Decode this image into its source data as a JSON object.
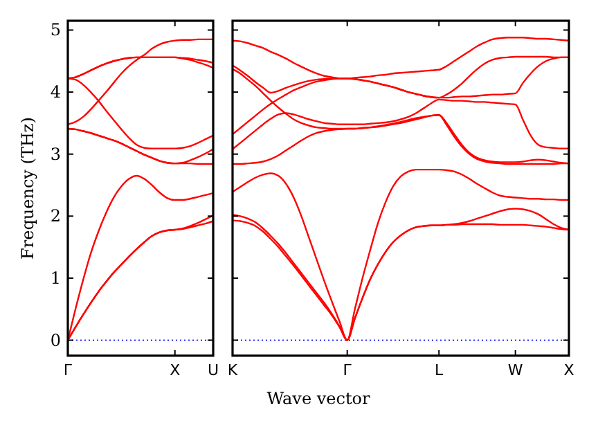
{
  "chart_data": [
    {
      "type": "line",
      "ylabel": "Frequency (THz)",
      "ylim": [
        -0.25,
        5.15
      ],
      "categories": [
        "Γ",
        null,
        null,
        null,
        null,
        null,
        null,
        null,
        null,
        null,
        null,
        null,
        null,
        null,
        "X",
        null,
        null,
        null,
        null,
        "U"
      ],
      "yticks": [
        0,
        1,
        2,
        3,
        4,
        5
      ],
      "ref_lines": [
        {
          "axis": "y",
          "value": 0,
          "color": "#0000ff",
          "line_style": "dotted"
        }
      ],
      "series": [
        {
          "color": "#ff0000",
          "values": [
            0,
            0.21,
            0.41,
            0.6,
            0.78,
            0.94,
            1.09,
            1.22,
            1.35,
            1.47,
            1.58,
            1.68,
            1.74,
            1.77,
            1.78,
            1.8,
            1.84,
            1.89,
            1.95,
            2.01
          ]
        },
        {
          "color": "#ff0000",
          "values": [
            0,
            0.21,
            0.41,
            0.6,
            0.78,
            0.94,
            1.09,
            1.22,
            1.35,
            1.47,
            1.58,
            1.68,
            1.74,
            1.77,
            1.78,
            1.79,
            1.82,
            1.85,
            1.88,
            1.92
          ]
        },
        {
          "color": "#ff0000",
          "values": [
            0,
            0.5,
            0.97,
            1.4,
            1.75,
            2.05,
            2.3,
            2.48,
            2.6,
            2.65,
            2.6,
            2.5,
            2.38,
            2.29,
            2.26,
            2.26,
            2.28,
            2.31,
            2.34,
            2.37
          ]
        },
        {
          "color": "#ff0000",
          "values": [
            3.41,
            3.4,
            3.37,
            3.34,
            3.3,
            3.26,
            3.22,
            3.17,
            3.11,
            3.05,
            2.99,
            2.94,
            2.89,
            2.86,
            2.85,
            2.85,
            2.85,
            2.84,
            2.84,
            2.84
          ]
        },
        {
          "color": "#ff0000",
          "values": [
            3.41,
            3.4,
            3.37,
            3.34,
            3.3,
            3.26,
            3.22,
            3.17,
            3.11,
            3.05,
            2.99,
            2.94,
            2.89,
            2.86,
            2.85,
            2.86,
            2.9,
            2.95,
            3.01,
            3.08
          ]
        },
        {
          "color": "#ff0000",
          "values": [
            3.48,
            3.52,
            3.6,
            3.72,
            3.86,
            4.0,
            4.15,
            4.3,
            4.42,
            4.52,
            4.6,
            4.7,
            4.77,
            4.81,
            4.83,
            4.84,
            4.84,
            4.85,
            4.85,
            4.85
          ]
        },
        {
          "color": "#ff0000",
          "values": [
            4.22,
            4.2,
            4.12,
            4.0,
            3.86,
            3.7,
            3.55,
            3.4,
            3.26,
            3.15,
            3.1,
            3.09,
            3.09,
            3.09,
            3.09,
            3.1,
            3.13,
            3.18,
            3.24,
            3.3
          ]
        },
        {
          "color": "#ff0000",
          "values": [
            4.22,
            4.24,
            4.29,
            4.35,
            4.41,
            4.46,
            4.5,
            4.53,
            4.55,
            4.56,
            4.56,
            4.56,
            4.56,
            4.56,
            4.56,
            4.55,
            4.54,
            4.52,
            4.5,
            4.47
          ]
        },
        {
          "color": "#ff0000",
          "values": [
            4.22,
            4.24,
            4.29,
            4.35,
            4.41,
            4.46,
            4.5,
            4.53,
            4.55,
            4.56,
            4.56,
            4.56,
            4.56,
            4.56,
            4.56,
            4.54,
            4.52,
            4.48,
            4.44,
            4.39
          ]
        }
      ]
    },
    {
      "type": "line",
      "xlabel": "Wave vector",
      "tick_labels": "x",
      "ylim": [
        -0.25,
        5.15
      ],
      "categories": [
        "K",
        null,
        null,
        null,
        null,
        null,
        null,
        null,
        null,
        null,
        null,
        null,
        null,
        null,
        null,
        "Γ",
        null,
        null,
        null,
        null,
        null,
        null,
        null,
        null,
        null,
        null,
        null,
        "L",
        null,
        null,
        null,
        null,
        null,
        null,
        null,
        null,
        null,
        "W",
        null,
        null,
        null,
        null,
        null,
        null,
        "X"
      ],
      "yticks": [
        0,
        1,
        2,
        3,
        4,
        5
      ],
      "ref_lines": [
        {
          "axis": "y",
          "value": 0,
          "color": "#0000ff",
          "line_style": "dotted"
        }
      ],
      "series": [
        {
          "color": "#ff0000",
          "values": [
            4.83,
            4.82,
            4.79,
            4.75,
            4.71,
            4.65,
            4.6,
            4.54,
            4.47,
            4.41,
            4.35,
            4.3,
            4.26,
            4.24,
            4.22,
            4.22,
            4.23,
            4.24,
            4.25,
            4.27,
            4.28,
            4.3,
            4.31,
            4.32,
            4.33,
            4.34,
            4.35,
            4.36,
            4.42,
            4.5,
            4.58,
            4.66,
            4.74,
            4.8,
            4.85,
            4.87,
            4.88,
            4.88,
            4.88,
            4.87,
            4.86,
            4.86,
            4.85,
            4.84,
            4.83
          ]
        },
        {
          "color": "#ff0000",
          "values": [
            4.43,
            4.35,
            4.26,
            4.16,
            4.07,
            3.99,
            4.02,
            4.07,
            4.11,
            4.15,
            4.18,
            4.2,
            4.21,
            4.22,
            4.22,
            4.22,
            4.21,
            4.19,
            4.17,
            4.14,
            4.11,
            4.08,
            4.04,
            4.0,
            3.97,
            3.94,
            3.92,
            3.91,
            3.96,
            4.04,
            4.14,
            4.26,
            4.37,
            4.46,
            4.52,
            4.55,
            4.56,
            4.57,
            4.57,
            4.57,
            4.57,
            4.57,
            4.56,
            4.56,
            4.56
          ]
        },
        {
          "color": "#ff0000",
          "values": [
            3.32,
            3.42,
            3.52,
            3.62,
            3.72,
            3.81,
            3.89,
            3.96,
            4.03,
            4.08,
            4.13,
            4.17,
            4.19,
            4.21,
            4.22,
            4.22,
            4.21,
            4.19,
            4.17,
            4.14,
            4.11,
            4.08,
            4.04,
            4.0,
            3.97,
            3.94,
            3.92,
            3.91,
            3.91,
            3.92,
            3.93,
            3.93,
            3.94,
            3.95,
            3.96,
            3.96,
            3.97,
            3.98,
            4.15,
            4.3,
            4.42,
            4.5,
            4.54,
            4.56,
            4.56
          ]
        },
        {
          "color": "#ff0000",
          "values": [
            3.08,
            3.18,
            3.28,
            3.38,
            3.48,
            3.57,
            3.64,
            3.66,
            3.64,
            3.6,
            3.56,
            3.53,
            3.5,
            3.49,
            3.48,
            3.48,
            3.48,
            3.48,
            3.49,
            3.5,
            3.51,
            3.53,
            3.56,
            3.6,
            3.66,
            3.74,
            3.82,
            3.88,
            3.87,
            3.86,
            3.86,
            3.85,
            3.84,
            3.84,
            3.83,
            3.82,
            3.81,
            3.8,
            3.55,
            3.3,
            3.15,
            3.11,
            3.1,
            3.09,
            3.09
          ]
        },
        {
          "color": "#ff0000",
          "values": [
            4.37,
            4.3,
            4.2,
            4.1,
            3.98,
            3.86,
            3.75,
            3.65,
            3.56,
            3.5,
            3.46,
            3.43,
            3.42,
            3.41,
            3.41,
            3.41,
            3.41,
            3.42,
            3.43,
            3.44,
            3.46,
            3.48,
            3.5,
            3.53,
            3.56,
            3.59,
            3.62,
            3.63,
            3.5,
            3.32,
            3.15,
            3.02,
            2.94,
            2.9,
            2.88,
            2.87,
            2.87,
            2.87,
            2.88,
            2.9,
            2.91,
            2.9,
            2.88,
            2.86,
            2.85
          ]
        },
        {
          "color": "#ff0000",
          "values": [
            2.84,
            2.84,
            2.85,
            2.86,
            2.88,
            2.92,
            2.98,
            3.06,
            3.14,
            3.22,
            3.29,
            3.34,
            3.37,
            3.39,
            3.4,
            3.41,
            3.41,
            3.42,
            3.43,
            3.45,
            3.47,
            3.49,
            3.52,
            3.55,
            3.58,
            3.6,
            3.62,
            3.63,
            3.47,
            3.28,
            3.12,
            3.0,
            2.92,
            2.88,
            2.86,
            2.85,
            2.84,
            2.84,
            2.84,
            2.84,
            2.84,
            2.84,
            2.84,
            2.85,
            2.85
          ]
        },
        {
          "color": "#ff0000",
          "values": [
            2.39,
            2.47,
            2.55,
            2.62,
            2.67,
            2.69,
            2.65,
            2.52,
            2.3,
            2.0,
            1.65,
            1.3,
            0.95,
            0.62,
            0.3,
            0,
            0.5,
            1.0,
            1.45,
            1.88,
            2.22,
            2.48,
            2.64,
            2.72,
            2.75,
            2.75,
            2.75,
            2.75,
            2.74,
            2.72,
            2.67,
            2.6,
            2.52,
            2.45,
            2.38,
            2.33,
            2.31,
            2.3,
            2.29,
            2.28,
            2.28,
            2.27,
            2.27,
            2.26,
            2.26
          ]
        },
        {
          "color": "#ff0000",
          "values": [
            2.02,
            2.0,
            1.96,
            1.9,
            1.8,
            1.68,
            1.55,
            1.4,
            1.24,
            1.08,
            0.92,
            0.76,
            0.6,
            0.42,
            0.22,
            0,
            0.35,
            0.68,
            0.98,
            1.22,
            1.42,
            1.58,
            1.69,
            1.77,
            1.82,
            1.84,
            1.85,
            1.85,
            1.86,
            1.87,
            1.89,
            1.92,
            1.96,
            2.0,
            2.04,
            2.08,
            2.11,
            2.12,
            2.11,
            2.08,
            2.03,
            1.95,
            1.87,
            1.81,
            1.78
          ]
        },
        {
          "color": "#ff0000",
          "values": [
            1.93,
            1.92,
            1.89,
            1.84,
            1.75,
            1.63,
            1.5,
            1.35,
            1.2,
            1.04,
            0.88,
            0.72,
            0.56,
            0.4,
            0.21,
            0,
            0.35,
            0.68,
            0.98,
            1.22,
            1.42,
            1.58,
            1.69,
            1.77,
            1.82,
            1.84,
            1.85,
            1.85,
            1.86,
            1.86,
            1.87,
            1.87,
            1.87,
            1.87,
            1.87,
            1.86,
            1.86,
            1.86,
            1.86,
            1.85,
            1.84,
            1.83,
            1.81,
            1.79,
            1.78
          ]
        }
      ]
    }
  ]
}
